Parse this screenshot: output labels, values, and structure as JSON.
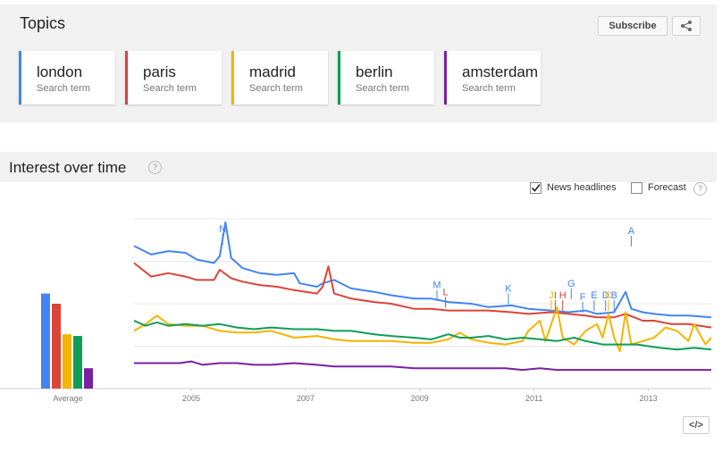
{
  "topics": {
    "title": "Topics",
    "subscribe_label": "Subscribe",
    "terms": [
      {
        "name": "london",
        "sub": "Search term",
        "color": "#4285f4"
      },
      {
        "name": "paris",
        "sub": "Search term",
        "color": "#db4437"
      },
      {
        "name": "madrid",
        "sub": "Search term",
        "color": "#f4b400"
      },
      {
        "name": "berlin",
        "sub": "Search term",
        "color": "#0f9d58"
      },
      {
        "name": "amsterdam",
        "sub": "Search term",
        "color": "#7b1fa2"
      }
    ]
  },
  "interest": {
    "title": "Interest over time",
    "news_headlines_label": "News headlines",
    "news_headlines_checked": true,
    "forecast_label": "Forecast",
    "forecast_checked": false,
    "average_label": "Average",
    "embed_label": "</>"
  },
  "chart_data": {
    "type": "line",
    "x_ticks": [
      "2005",
      "2007",
      "2009",
      "2011",
      "2013"
    ],
    "xlim": [
      2004.0,
      2014.1
    ],
    "ylim": [
      0,
      100
    ],
    "grid": true,
    "series": [
      {
        "name": "london",
        "color": "#4285f4",
        "average": 56,
        "points": [
          [
            2004.0,
            84
          ],
          [
            2004.3,
            79
          ],
          [
            2004.6,
            81
          ],
          [
            2004.9,
            80
          ],
          [
            2005.1,
            76
          ],
          [
            2005.4,
            74
          ],
          [
            2005.5,
            78
          ],
          [
            2005.6,
            98
          ],
          [
            2005.7,
            77
          ],
          [
            2005.9,
            71
          ],
          [
            2006.2,
            68
          ],
          [
            2006.5,
            67
          ],
          [
            2006.8,
            68
          ],
          [
            2006.9,
            62
          ],
          [
            2007.2,
            60
          ],
          [
            2007.3,
            62
          ],
          [
            2007.5,
            64
          ],
          [
            2007.8,
            59
          ],
          [
            2008.2,
            57
          ],
          [
            2008.5,
            55
          ],
          [
            2008.9,
            53
          ],
          [
            2009.2,
            53
          ],
          [
            2009.5,
            51
          ],
          [
            2009.9,
            50
          ],
          [
            2010.2,
            48
          ],
          [
            2010.6,
            49
          ],
          [
            2010.9,
            47
          ],
          [
            2011.3,
            46
          ],
          [
            2011.6,
            45
          ],
          [
            2011.9,
            46
          ],
          [
            2012.1,
            44
          ],
          [
            2012.4,
            45
          ],
          [
            2012.6,
            57
          ],
          [
            2012.7,
            47
          ],
          [
            2012.9,
            45
          ],
          [
            2013.1,
            44
          ],
          [
            2013.4,
            43
          ],
          [
            2013.7,
            43
          ],
          [
            2014.1,
            42
          ]
        ]
      },
      {
        "name": "paris",
        "color": "#db4437",
        "average": 50,
        "points": [
          [
            2004.0,
            74
          ],
          [
            2004.3,
            66
          ],
          [
            2004.6,
            68
          ],
          [
            2004.9,
            66
          ],
          [
            2005.1,
            64
          ],
          [
            2005.4,
            64
          ],
          [
            2005.5,
            70
          ],
          [
            2005.7,
            65
          ],
          [
            2005.9,
            63
          ],
          [
            2006.2,
            61
          ],
          [
            2006.5,
            60
          ],
          [
            2006.8,
            58
          ],
          [
            2007.2,
            56
          ],
          [
            2007.3,
            60
          ],
          [
            2007.4,
            72
          ],
          [
            2007.5,
            56
          ],
          [
            2007.8,
            53
          ],
          [
            2008.2,
            51
          ],
          [
            2008.5,
            50
          ],
          [
            2008.9,
            47
          ],
          [
            2009.2,
            47
          ],
          [
            2009.5,
            46
          ],
          [
            2009.9,
            46
          ],
          [
            2010.2,
            46
          ],
          [
            2010.6,
            45
          ],
          [
            2010.9,
            44
          ],
          [
            2011.3,
            45
          ],
          [
            2011.6,
            44
          ],
          [
            2011.9,
            43
          ],
          [
            2012.1,
            42
          ],
          [
            2012.4,
            42
          ],
          [
            2012.6,
            44
          ],
          [
            2012.9,
            40
          ],
          [
            2013.1,
            40
          ],
          [
            2013.4,
            38
          ],
          [
            2013.7,
            38
          ],
          [
            2014.1,
            36
          ]
        ]
      },
      {
        "name": "madrid",
        "color": "#f4b400",
        "average": 32,
        "points": [
          [
            2004.0,
            34
          ],
          [
            2004.2,
            38
          ],
          [
            2004.4,
            43
          ],
          [
            2004.6,
            38
          ],
          [
            2004.9,
            37
          ],
          [
            2005.2,
            37
          ],
          [
            2005.5,
            34
          ],
          [
            2005.8,
            33
          ],
          [
            2006.1,
            33
          ],
          [
            2006.4,
            34
          ],
          [
            2006.8,
            30
          ],
          [
            2007.2,
            31
          ],
          [
            2007.5,
            29
          ],
          [
            2007.8,
            28
          ],
          [
            2008.2,
            28
          ],
          [
            2008.5,
            28
          ],
          [
            2008.9,
            27
          ],
          [
            2009.2,
            27
          ],
          [
            2009.5,
            29
          ],
          [
            2009.7,
            33
          ],
          [
            2009.9,
            29
          ],
          [
            2010.2,
            27
          ],
          [
            2010.5,
            26
          ],
          [
            2010.8,
            28
          ],
          [
            2010.9,
            34
          ],
          [
            2011.1,
            40
          ],
          [
            2011.2,
            28
          ],
          [
            2011.3,
            38
          ],
          [
            2011.4,
            48
          ],
          [
            2011.5,
            30
          ],
          [
            2011.7,
            26
          ],
          [
            2011.9,
            34
          ],
          [
            2012.1,
            38
          ],
          [
            2012.2,
            30
          ],
          [
            2012.3,
            44
          ],
          [
            2012.4,
            30
          ],
          [
            2012.5,
            22
          ],
          [
            2012.6,
            45
          ],
          [
            2012.7,
            26
          ],
          [
            2012.9,
            28
          ],
          [
            2013.1,
            30
          ],
          [
            2013.3,
            36
          ],
          [
            2013.5,
            34
          ],
          [
            2013.7,
            28
          ],
          [
            2013.8,
            38
          ],
          [
            2014.0,
            26
          ],
          [
            2014.1,
            30
          ]
        ]
      },
      {
        "name": "berlin",
        "color": "#0f9d58",
        "average": 31,
        "points": [
          [
            2004.0,
            40
          ],
          [
            2004.2,
            37
          ],
          [
            2004.4,
            39
          ],
          [
            2004.6,
            37
          ],
          [
            2004.9,
            38
          ],
          [
            2005.2,
            37
          ],
          [
            2005.5,
            38
          ],
          [
            2005.8,
            36
          ],
          [
            2006.1,
            35
          ],
          [
            2006.4,
            36
          ],
          [
            2006.8,
            35
          ],
          [
            2007.2,
            35
          ],
          [
            2007.5,
            34
          ],
          [
            2007.8,
            34
          ],
          [
            2008.2,
            32
          ],
          [
            2008.5,
            31
          ],
          [
            2008.9,
            30
          ],
          [
            2009.2,
            29
          ],
          [
            2009.5,
            32
          ],
          [
            2009.7,
            30
          ],
          [
            2009.9,
            30
          ],
          [
            2010.2,
            31
          ],
          [
            2010.5,
            29
          ],
          [
            2010.8,
            30
          ],
          [
            2011.1,
            29
          ],
          [
            2011.4,
            28
          ],
          [
            2011.7,
            30
          ],
          [
            2011.9,
            28
          ],
          [
            2012.2,
            26
          ],
          [
            2012.5,
            26
          ],
          [
            2012.8,
            26
          ],
          [
            2013.0,
            25
          ],
          [
            2013.2,
            24
          ],
          [
            2013.5,
            23
          ],
          [
            2013.8,
            24
          ],
          [
            2014.1,
            23
          ]
        ]
      },
      {
        "name": "amsterdam",
        "color": "#7b1fa2",
        "average": 12,
        "points": [
          [
            2004.0,
            15
          ],
          [
            2004.4,
            15
          ],
          [
            2004.8,
            15
          ],
          [
            2005.0,
            16
          ],
          [
            2005.2,
            14
          ],
          [
            2005.5,
            15
          ],
          [
            2005.8,
            15
          ],
          [
            2006.1,
            14
          ],
          [
            2006.4,
            14
          ],
          [
            2006.8,
            15
          ],
          [
            2007.2,
            14
          ],
          [
            2007.5,
            13
          ],
          [
            2007.8,
            13
          ],
          [
            2008.2,
            13
          ],
          [
            2008.5,
            13
          ],
          [
            2008.9,
            12
          ],
          [
            2009.2,
            12
          ],
          [
            2009.6,
            12
          ],
          [
            2009.9,
            12
          ],
          [
            2010.2,
            12
          ],
          [
            2010.5,
            12
          ],
          [
            2010.8,
            11
          ],
          [
            2011.1,
            12
          ],
          [
            2011.4,
            11
          ],
          [
            2011.7,
            11
          ],
          [
            2011.9,
            11
          ],
          [
            2012.2,
            11
          ],
          [
            2012.5,
            11
          ],
          [
            2012.8,
            11
          ],
          [
            2013.2,
            11
          ],
          [
            2013.5,
            11
          ],
          [
            2013.8,
            11
          ],
          [
            2014.1,
            11
          ]
        ]
      }
    ],
    "annotations": [
      {
        "letter": "N",
        "x": 2005.55,
        "y": 90,
        "color": "#4285f4"
      },
      {
        "letter": "M",
        "x": 2009.3,
        "y": 57,
        "color": "#4285f4"
      },
      {
        "letter": "L",
        "x": 2009.45,
        "y": 53,
        "color": "#db4437"
      },
      {
        "letter": "K",
        "x": 2010.55,
        "y": 55,
        "color": "#4285f4"
      },
      {
        "letter": "J",
        "x": 2011.3,
        "y": 51,
        "color": "#f4b400"
      },
      {
        "letter": "I",
        "x": 2011.37,
        "y": 51,
        "color": "#db4437"
      },
      {
        "letter": "H",
        "x": 2011.5,
        "y": 51,
        "color": "#db4437"
      },
      {
        "letter": "G",
        "x": 2011.65,
        "y": 58,
        "color": "#4285f4"
      },
      {
        "letter": "F",
        "x": 2011.85,
        "y": 50,
        "color": "#4285f4"
      },
      {
        "letter": "E",
        "x": 2012.05,
        "y": 51,
        "color": "#4285f4"
      },
      {
        "letter": "D",
        "x": 2012.25,
        "y": 51,
        "color": "#4285f4"
      },
      {
        "letter": "C",
        "x": 2012.3,
        "y": 51,
        "color": "#f4b400"
      },
      {
        "letter": "B",
        "x": 2012.4,
        "y": 51,
        "color": "#4285f4"
      },
      {
        "letter": "A",
        "x": 2012.7,
        "y": 89,
        "color": "#4285f4"
      }
    ]
  }
}
